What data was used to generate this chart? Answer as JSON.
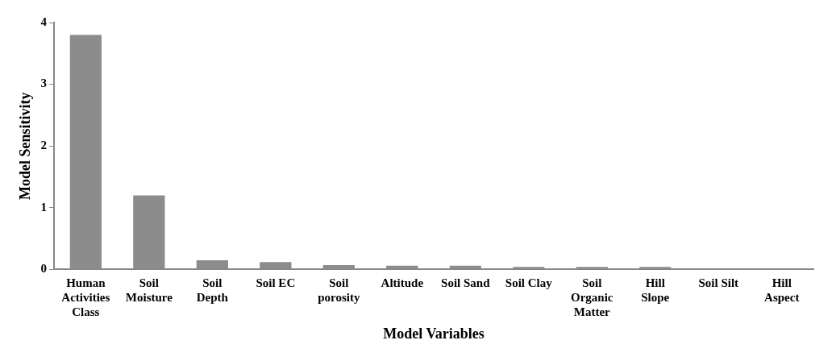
{
  "chart_data": {
    "type": "bar",
    "xlabel": "Model Variables",
    "ylabel": "Model Sensitivity",
    "categories": [
      "Human Activities Class",
      "Soil Moisture",
      "Soil Depth",
      "Soil EC",
      "Soil porosity",
      "Altitude",
      "Soil Sand",
      "Soil Clay",
      "Soil Organic Matter",
      "Hill Slope",
      "Soil Silt",
      "Hill Aspect"
    ],
    "values": [
      3.8,
      1.2,
      0.15,
      0.12,
      0.07,
      0.06,
      0.06,
      0.04,
      0.04,
      0.04,
      0.01,
      0.01
    ],
    "color": "#8c8c8c",
    "ylim": [
      0,
      4
    ],
    "yticks": [
      0,
      1,
      2,
      3,
      4
    ],
    "grid": false,
    "legend": false
  }
}
